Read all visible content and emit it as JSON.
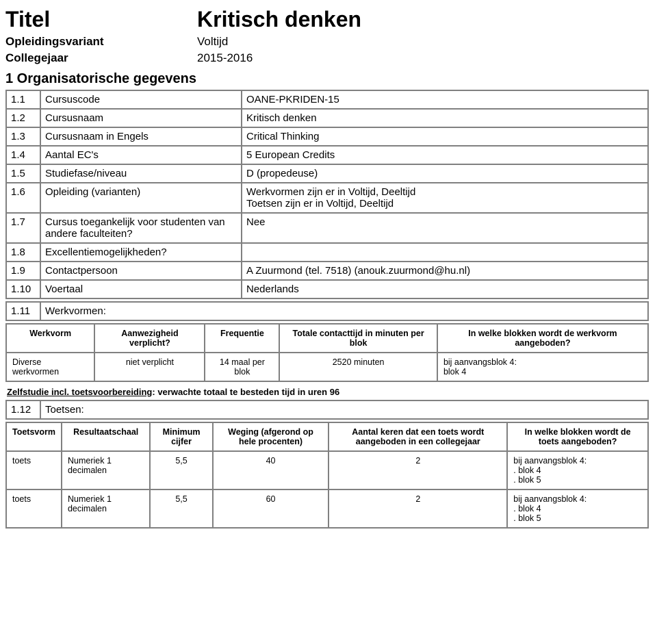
{
  "header": {
    "title_label": "Titel",
    "title_value": "Kritisch denken",
    "variant_label": "Opleidingsvariant",
    "variant_value": "Voltijd",
    "year_label": "Collegejaar",
    "year_value": "2015-2016"
  },
  "section1": {
    "heading": "1 Organisatorische gegevens",
    "rows": [
      {
        "num": "1.1",
        "label": "Cursuscode",
        "value": "OANE-PKRIDEN-15"
      },
      {
        "num": "1.2",
        "label": "Cursusnaam",
        "value": "Kritisch denken"
      },
      {
        "num": "1.3",
        "label": "Cursusnaam in Engels",
        "value": "Critical Thinking"
      },
      {
        "num": "1.4",
        "label": "Aantal EC's",
        "value": "5 European Credits"
      },
      {
        "num": "1.5",
        "label": "Studiefase/niveau",
        "value": "D (propedeuse)"
      },
      {
        "num": "1.6",
        "label": "Opleiding (varianten)",
        "value": "Werkvormen zijn er in Voltijd, Deeltijd\nToetsen zijn er in Voltijd, Deeltijd"
      },
      {
        "num": "1.7",
        "label": "Cursus toegankelijk voor studenten van andere faculteiten?",
        "value": "Nee"
      },
      {
        "num": "1.8",
        "label": "Excellentiemogelijkheden?",
        "value": ""
      },
      {
        "num": "1.9",
        "label": "Contactpersoon",
        "value": "A Zuurmond (tel. 7518) (anouk.zuurmond@hu.nl)"
      },
      {
        "num": "1.10",
        "label": "Voertaal",
        "value": "Nederlands"
      }
    ],
    "row_111": {
      "num": "1.11",
      "label": "Werkvormen:"
    },
    "werkvormen_table": {
      "headers": [
        "Werkvorm",
        "Aanwezigheid verplicht?",
        "Frequentie",
        "Totale contacttijd in minuten per blok",
        "In welke blokken wordt de werkvorm aangeboden?"
      ],
      "row": [
        "Diverse werkvormen",
        "niet verplicht",
        "14 maal per blok",
        "2520 minuten",
        "bij aanvangsblok 4:\nblok 4"
      ]
    },
    "zelfstudie_label": "Zelfstudie incl. toetsvoorbereiding",
    "zelfstudie_rest": ": verwachte totaal te besteden tijd in uren 96",
    "row_112": {
      "num": "1.12",
      "label": "Toetsen:"
    },
    "toetsen_table": {
      "headers": [
        "Toetsvorm",
        "Resultaatschaal",
        "Minimum cijfer",
        "Weging (afgerond op hele procenten)",
        "Aantal keren dat een toets wordt aangeboden in een collegejaar",
        "In welke blokken wordt de toets aangeboden?"
      ],
      "rows": [
        [
          "toets",
          "Numeriek 1 decimalen",
          "5,5",
          "40",
          "2",
          "bij aanvangsblok 4:\n. blok 4\n. blok 5"
        ],
        [
          "toets",
          "Numeriek 1 decimalen",
          "5,5",
          "60",
          "2",
          "bij aanvangsblok 4:\n. blok 4\n. blok 5"
        ]
      ]
    }
  }
}
